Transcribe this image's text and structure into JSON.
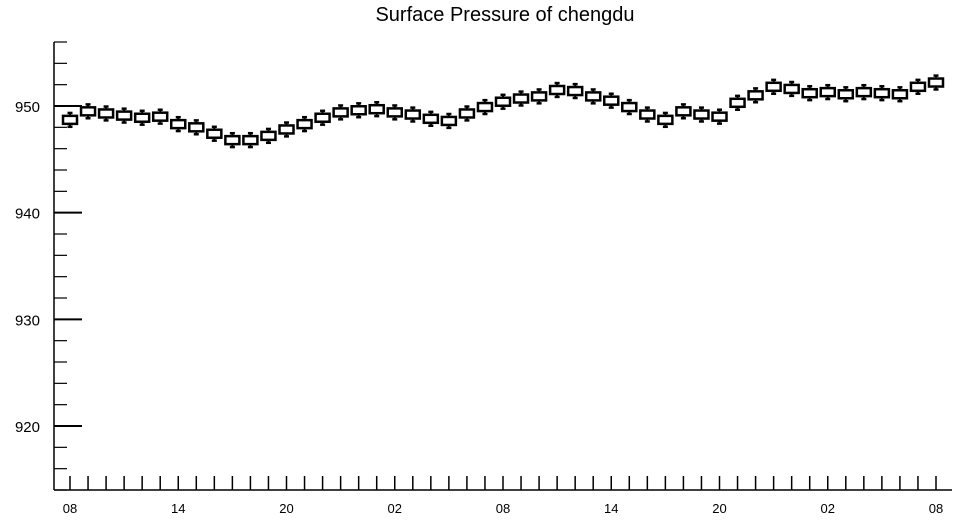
{
  "chart_data": {
    "type": "boxplot",
    "title": "Surface Pressure of chengdu",
    "xlabel": "",
    "ylabel": "",
    "ylim": [
      914,
      956
    ],
    "y_major_ticks": [
      920,
      930,
      940,
      950
    ],
    "y_minor_step": 2,
    "x_tick_labels": [
      "08",
      "14",
      "20",
      "02",
      "08",
      "14",
      "20",
      "02",
      "08"
    ],
    "x_tick_label_every": 6,
    "grid": false,
    "colors": {
      "box_fill": "#ffffff",
      "stroke": "#000000",
      "background": "#ffffff"
    },
    "series": [
      {
        "values": [
          948.7,
          949.5,
          949.3,
          949.1,
          948.9,
          949.0,
          948.3,
          948.0,
          947.4,
          946.8,
          946.8,
          947.2,
          947.8,
          948.3,
          948.9,
          949.4,
          949.6,
          949.7,
          949.4,
          949.2,
          948.8,
          948.6,
          949.3,
          949.9,
          950.4,
          950.7,
          950.9,
          951.5,
          951.4,
          950.9,
          950.5,
          949.9,
          949.2,
          948.7,
          949.5,
          949.2,
          949.0,
          950.3,
          951.0,
          951.8,
          951.6,
          951.2,
          951.3,
          951.1,
          951.3,
          951.2,
          951.1,
          951.8,
          952.2
        ]
      }
    ]
  }
}
